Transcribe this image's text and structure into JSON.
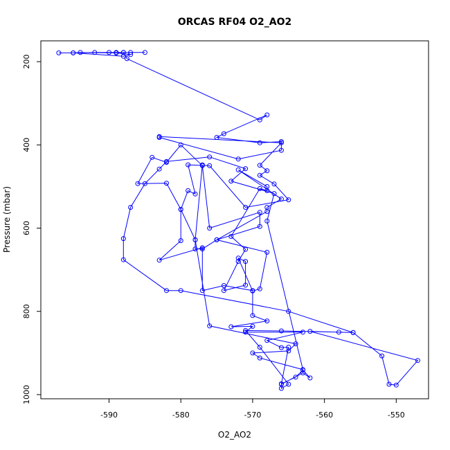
{
  "chart_data": {
    "type": "scatter",
    "title": "ORCAS RF04 O2_AO2",
    "xlabel": "O2_AO2",
    "ylabel": "Pressure (mbar)",
    "xlim": [
      -599.5,
      -545.5
    ],
    "ylim": [
      1010,
      150
    ],
    "y_reversed": true,
    "xticks": [
      -590,
      -580,
      -570,
      -560,
      -550
    ],
    "yticks": [
      200,
      400,
      600,
      800,
      1000
    ],
    "grid": false,
    "color": "#0000ff",
    "marker": "open-circle",
    "connected": true,
    "series": [
      {
        "points": [
          [
            -597,
            179
          ],
          [
            -595,
            179
          ],
          [
            -592,
            178
          ],
          [
            -590,
            178
          ],
          [
            -589,
            178
          ],
          [
            -587,
            178
          ],
          [
            -585,
            178
          ],
          [
            -588,
            178
          ],
          [
            -589,
            179
          ],
          [
            -587,
            183
          ],
          [
            -588,
            187
          ],
          [
            -595,
            179
          ],
          [
            -594,
            178
          ],
          [
            -589,
            179
          ],
          [
            -588,
            178
          ],
          [
            -587.5,
            193
          ],
          [
            -569,
            340
          ],
          [
            -568,
            328
          ],
          [
            -574,
            373
          ],
          [
            -575,
            382
          ],
          [
            -569,
            395
          ],
          [
            -566,
            392
          ],
          [
            -566,
            413
          ],
          [
            -572,
            434
          ],
          [
            -583,
            382
          ],
          [
            -583,
            380
          ],
          [
            -566,
            395
          ],
          [
            -569,
            449
          ],
          [
            -568,
            462
          ],
          [
            -569,
            473
          ],
          [
            -567,
            494
          ],
          [
            -565,
            532
          ],
          [
            -571,
            550
          ],
          [
            -576,
            450
          ],
          [
            -579,
            448
          ],
          [
            -578,
            518
          ],
          [
            -579,
            510
          ],
          [
            -580,
            555
          ],
          [
            -578,
            628
          ],
          [
            -578,
            650
          ],
          [
            -577,
            650
          ],
          [
            -575,
            628
          ],
          [
            -568,
            560
          ],
          [
            -568,
            550
          ],
          [
            -566,
            530
          ],
          [
            -572,
            460
          ],
          [
            -568,
            500
          ],
          [
            -568,
            510
          ],
          [
            -569,
            505
          ],
          [
            -573,
            620
          ],
          [
            -571,
            651
          ],
          [
            -572,
            680
          ],
          [
            -574,
            750
          ],
          [
            -571,
            737
          ],
          [
            -571,
            680
          ],
          [
            -572,
            672
          ],
          [
            -570,
            751
          ],
          [
            -569,
            746
          ],
          [
            -568,
            658
          ],
          [
            -575,
            628
          ],
          [
            -569,
            596
          ],
          [
            -569,
            562
          ],
          [
            -576,
            600
          ],
          [
            -577,
            450
          ],
          [
            -580,
            400
          ],
          [
            -582,
            442
          ],
          [
            -584,
            430
          ],
          [
            -586,
            493
          ],
          [
            -582,
            492
          ],
          [
            -580,
            555
          ],
          [
            -580,
            630
          ],
          [
            -583,
            677
          ],
          [
            -577,
            647
          ],
          [
            -577,
            750
          ],
          [
            -574,
            738
          ],
          [
            -570,
            750
          ],
          [
            -570,
            810
          ],
          [
            -568,
            823
          ],
          [
            -573,
            837
          ],
          [
            -570,
            836
          ],
          [
            -571,
            850
          ],
          [
            -563,
            850
          ],
          [
            -568,
            870
          ],
          [
            -566,
            887
          ],
          [
            -565,
            886
          ],
          [
            -566,
            974
          ],
          [
            -564,
            958
          ],
          [
            -563,
            941
          ],
          [
            -562,
            960
          ],
          [
            -563,
            948
          ],
          [
            -566,
            975
          ],
          [
            -566,
            985
          ],
          [
            -565,
            975
          ],
          [
            -569,
            886
          ],
          [
            -571,
            846
          ],
          [
            -566,
            847
          ],
          [
            -558,
            850
          ],
          [
            -556,
            851
          ],
          [
            -552,
            907
          ],
          [
            -551,
            975
          ],
          [
            -550,
            977
          ],
          [
            -547,
            918
          ],
          [
            -562,
            848
          ],
          [
            -556,
            851
          ],
          [
            -565,
            800
          ],
          [
            -580,
            750
          ],
          [
            -582,
            750
          ],
          [
            -588,
            676
          ],
          [
            -588,
            625
          ],
          [
            -587,
            550
          ],
          [
            -585,
            493
          ],
          [
            -583,
            458
          ],
          [
            -582,
            440
          ],
          [
            -576,
            429
          ],
          [
            -571,
            457
          ],
          [
            -573,
            487
          ],
          [
            -567,
            517
          ],
          [
            -568,
            583
          ],
          [
            -563,
            940
          ],
          [
            -569,
            912
          ],
          [
            -570,
            900
          ],
          [
            -565,
            895
          ],
          [
            -564,
            878
          ],
          [
            -576,
            835
          ],
          [
            -578,
            628
          ],
          [
            -577,
            448
          ]
        ]
      }
    ]
  }
}
